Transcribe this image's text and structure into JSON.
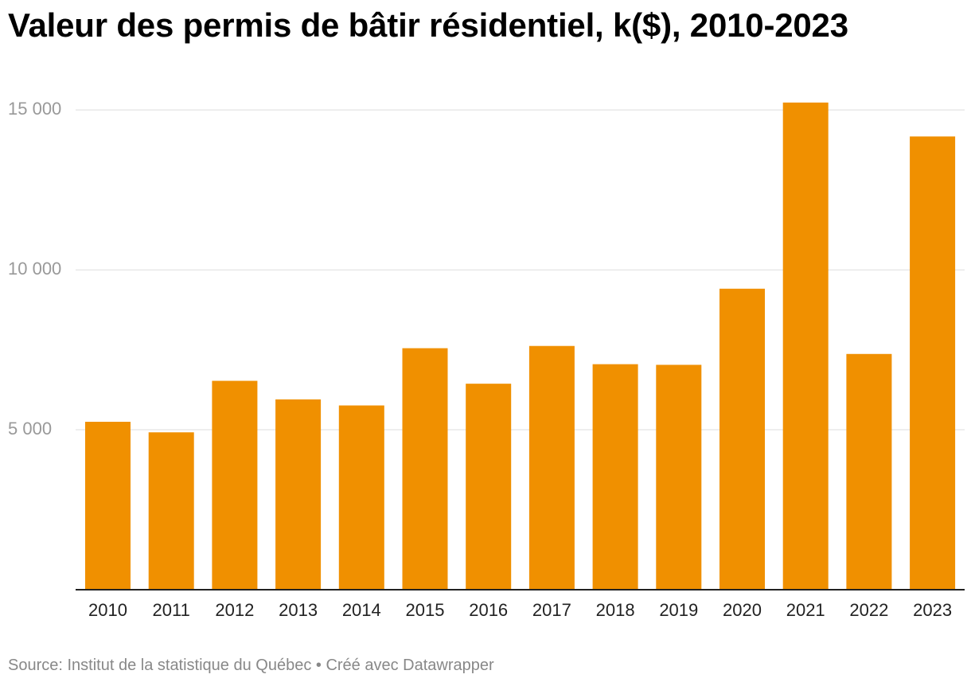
{
  "chart_data": {
    "type": "bar",
    "title": "Valeur des permis de bâtir résidentiel, k($), 2010-2023",
    "categories": [
      "2010",
      "2011",
      "2012",
      "2013",
      "2014",
      "2015",
      "2016",
      "2017",
      "2018",
      "2019",
      "2020",
      "2021",
      "2022",
      "2023"
    ],
    "values": [
      5250,
      4920,
      6530,
      5950,
      5760,
      7550,
      6440,
      7620,
      7050,
      7030,
      9410,
      15230,
      7370,
      14170
    ],
    "ylim": [
      0,
      15500
    ],
    "yticks": [
      5000,
      10000,
      15000
    ],
    "ytick_labels": [
      "5 000",
      "10 000",
      "15 000"
    ],
    "grid": true,
    "bar_color": "#f09000"
  },
  "footer": {
    "source": "Source: Institut de la statistique du Québec • Créé avec Datawrapper"
  }
}
